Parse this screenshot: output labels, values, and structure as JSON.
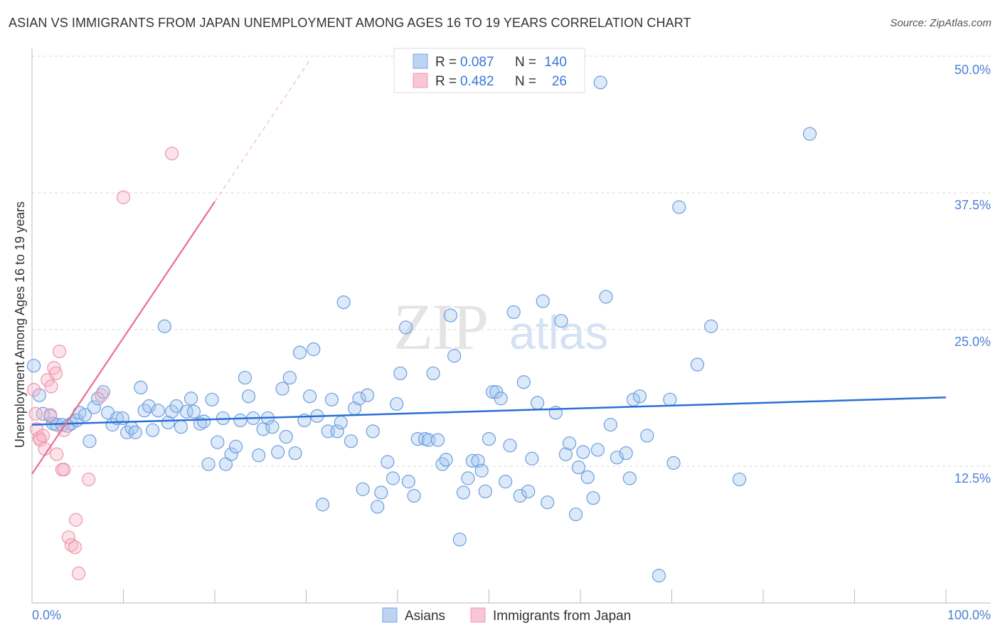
{
  "chart_data": {
    "type": "scatter",
    "title": "ASIAN VS IMMIGRANTS FROM JAPAN UNEMPLOYMENT AMONG AGES 16 TO 19 YEARS CORRELATION CHART",
    "source": "Source: ZipAtlas.com",
    "xlabel": "",
    "ylabel": "Unemployment Among Ages 16 to 19 years",
    "xlim": [
      0,
      100
    ],
    "ylim": [
      0,
      50
    ],
    "x_tick_labels": [
      "0.0%",
      "100.0%"
    ],
    "y_ticks": [
      12.5,
      25.0,
      37.5,
      50.0
    ],
    "y_tick_labels": [
      "12.5%",
      "25.0%",
      "37.5%",
      "50.0%"
    ],
    "grid": true,
    "watermark": "ZIPatlas",
    "legend_stats": [
      {
        "r_label": "R =",
        "r": "0.087",
        "n_label": "N =",
        "n": "140"
      },
      {
        "r_label": "R =",
        "r": "0.482",
        "n_label": "N =",
        "n": "26"
      }
    ],
    "series": [
      {
        "name": "Asians",
        "color": "#4a86e8",
        "trend": {
          "x0": 0,
          "y0": 16.3,
          "x1": 100,
          "y1": 18.8
        },
        "points": [
          [
            0.2,
            21.7
          ],
          [
            0.8,
            19.0
          ],
          [
            1.2,
            17.3
          ],
          [
            2.0,
            17.1
          ],
          [
            2.3,
            16.4
          ],
          [
            2.7,
            16.3
          ],
          [
            3.3,
            16.3
          ],
          [
            3.9,
            16.2
          ],
          [
            4.3,
            16.4
          ],
          [
            4.9,
            16.7
          ],
          [
            5.2,
            17.4
          ],
          [
            5.8,
            17.2
          ],
          [
            6.3,
            14.8
          ],
          [
            6.8,
            17.9
          ],
          [
            7.2,
            18.7
          ],
          [
            7.8,
            19.3
          ],
          [
            8.3,
            17.4
          ],
          [
            8.8,
            16.3
          ],
          [
            9.3,
            16.9
          ],
          [
            9.9,
            16.9
          ],
          [
            10.4,
            15.6
          ],
          [
            10.9,
            16.0
          ],
          [
            11.3,
            15.6
          ],
          [
            11.9,
            19.7
          ],
          [
            12.3,
            17.6
          ],
          [
            12.8,
            18.0
          ],
          [
            13.2,
            15.8
          ],
          [
            13.8,
            17.6
          ],
          [
            14.5,
            25.3
          ],
          [
            14.9,
            16.5
          ],
          [
            15.3,
            17.5
          ],
          [
            15.8,
            18.0
          ],
          [
            16.3,
            16.1
          ],
          [
            16.9,
            17.5
          ],
          [
            17.4,
            18.7
          ],
          [
            17.7,
            17.5
          ],
          [
            18.4,
            16.4
          ],
          [
            18.8,
            16.6
          ],
          [
            19.3,
            12.7
          ],
          [
            19.7,
            18.6
          ],
          [
            20.3,
            14.7
          ],
          [
            20.9,
            16.9
          ],
          [
            21.2,
            12.7
          ],
          [
            21.8,
            13.6
          ],
          [
            22.3,
            14.3
          ],
          [
            22.8,
            16.7
          ],
          [
            23.3,
            20.6
          ],
          [
            23.7,
            18.9
          ],
          [
            24.2,
            16.9
          ],
          [
            24.8,
            13.5
          ],
          [
            25.3,
            15.9
          ],
          [
            25.8,
            16.9
          ],
          [
            26.3,
            16.1
          ],
          [
            26.9,
            13.8
          ],
          [
            27.4,
            19.6
          ],
          [
            27.8,
            15.2
          ],
          [
            28.2,
            20.6
          ],
          [
            28.8,
            13.7
          ],
          [
            29.3,
            22.9
          ],
          [
            29.8,
            16.7
          ],
          [
            30.4,
            18.9
          ],
          [
            30.8,
            23.2
          ],
          [
            31.2,
            17.1
          ],
          [
            31.8,
            9.0
          ],
          [
            32.4,
            15.7
          ],
          [
            32.8,
            18.6
          ],
          [
            33.4,
            15.7
          ],
          [
            33.8,
            16.5
          ],
          [
            34.1,
            27.5
          ],
          [
            34.9,
            14.8
          ],
          [
            35.3,
            17.8
          ],
          [
            35.8,
            18.7
          ],
          [
            36.2,
            10.4
          ],
          [
            36.7,
            19.0
          ],
          [
            37.3,
            15.7
          ],
          [
            37.8,
            8.8
          ],
          [
            38.2,
            10.1
          ],
          [
            38.9,
            12.9
          ],
          [
            39.5,
            11.4
          ],
          [
            39.9,
            18.2
          ],
          [
            40.3,
            21.0
          ],
          [
            40.9,
            25.2
          ],
          [
            41.2,
            11.1
          ],
          [
            41.8,
            9.8
          ],
          [
            42.2,
            15.0
          ],
          [
            43.0,
            15.0
          ],
          [
            43.4,
            14.9
          ],
          [
            43.9,
            21.0
          ],
          [
            44.4,
            14.9
          ],
          [
            44.9,
            12.7
          ],
          [
            45.3,
            13.1
          ],
          [
            45.8,
            26.3
          ],
          [
            46.2,
            22.6
          ],
          [
            46.8,
            5.8
          ],
          [
            47.2,
            10.1
          ],
          [
            47.7,
            11.4
          ],
          [
            48.2,
            13.0
          ],
          [
            48.8,
            13.0
          ],
          [
            49.2,
            12.1
          ],
          [
            49.6,
            10.2
          ],
          [
            50.0,
            15.0
          ],
          [
            50.4,
            19.3
          ],
          [
            50.8,
            19.3
          ],
          [
            51.3,
            18.7
          ],
          [
            51.8,
            11.1
          ],
          [
            52.3,
            14.4
          ],
          [
            52.7,
            26.6
          ],
          [
            53.4,
            9.8
          ],
          [
            53.8,
            20.2
          ],
          [
            54.3,
            10.2
          ],
          [
            54.7,
            13.2
          ],
          [
            55.3,
            18.3
          ],
          [
            55.9,
            27.6
          ],
          [
            56.4,
            9.2
          ],
          [
            56.4,
            48.9
          ],
          [
            57.3,
            17.4
          ],
          [
            57.9,
            25.8
          ],
          [
            58.4,
            13.6
          ],
          [
            58.8,
            14.6
          ],
          [
            59.5,
            8.1
          ],
          [
            59.8,
            12.4
          ],
          [
            60.3,
            13.8
          ],
          [
            60.8,
            11.5
          ],
          [
            61.4,
            9.6
          ],
          [
            61.9,
            14.0
          ],
          [
            62.2,
            47.6
          ],
          [
            62.8,
            28.0
          ],
          [
            63.3,
            16.3
          ],
          [
            64.0,
            13.3
          ],
          [
            65.0,
            13.7
          ],
          [
            65.4,
            11.4
          ],
          [
            65.8,
            18.6
          ],
          [
            66.5,
            18.9
          ],
          [
            67.3,
            15.3
          ],
          [
            68.6,
            2.5
          ],
          [
            69.8,
            18.6
          ],
          [
            70.2,
            12.8
          ],
          [
            70.8,
            36.2
          ],
          [
            72.8,
            21.8
          ],
          [
            74.3,
            25.3
          ],
          [
            77.4,
            11.3
          ],
          [
            85.1,
            42.9
          ]
        ]
      },
      {
        "name": "Immigrants from Japan",
        "color": "#e8708f",
        "trend": {
          "x0": 0,
          "y0": 11.8,
          "x1": 20,
          "y1": 36.7,
          "dash_to_x": 30.5
        },
        "points": [
          [
            0.2,
            19.5
          ],
          [
            0.4,
            17.3
          ],
          [
            0.5,
            15.9
          ],
          [
            0.8,
            15.1
          ],
          [
            0.9,
            14.9
          ],
          [
            1.2,
            15.3
          ],
          [
            1.4,
            14.1
          ],
          [
            1.7,
            20.4
          ],
          [
            2.0,
            17.2
          ],
          [
            2.1,
            19.8
          ],
          [
            2.4,
            21.5
          ],
          [
            2.6,
            21.0
          ],
          [
            2.7,
            13.6
          ],
          [
            3.0,
            23.0
          ],
          [
            3.3,
            12.2
          ],
          [
            3.5,
            12.2
          ],
          [
            3.5,
            15.8
          ],
          [
            4.8,
            7.6
          ],
          [
            4.0,
            6.0
          ],
          [
            4.3,
            5.3
          ],
          [
            4.7,
            5.1
          ],
          [
            5.1,
            2.7
          ],
          [
            6.2,
            11.3
          ],
          [
            7.6,
            19.0
          ],
          [
            10.0,
            37.1
          ],
          [
            15.3,
            41.1
          ]
        ]
      }
    ]
  }
}
